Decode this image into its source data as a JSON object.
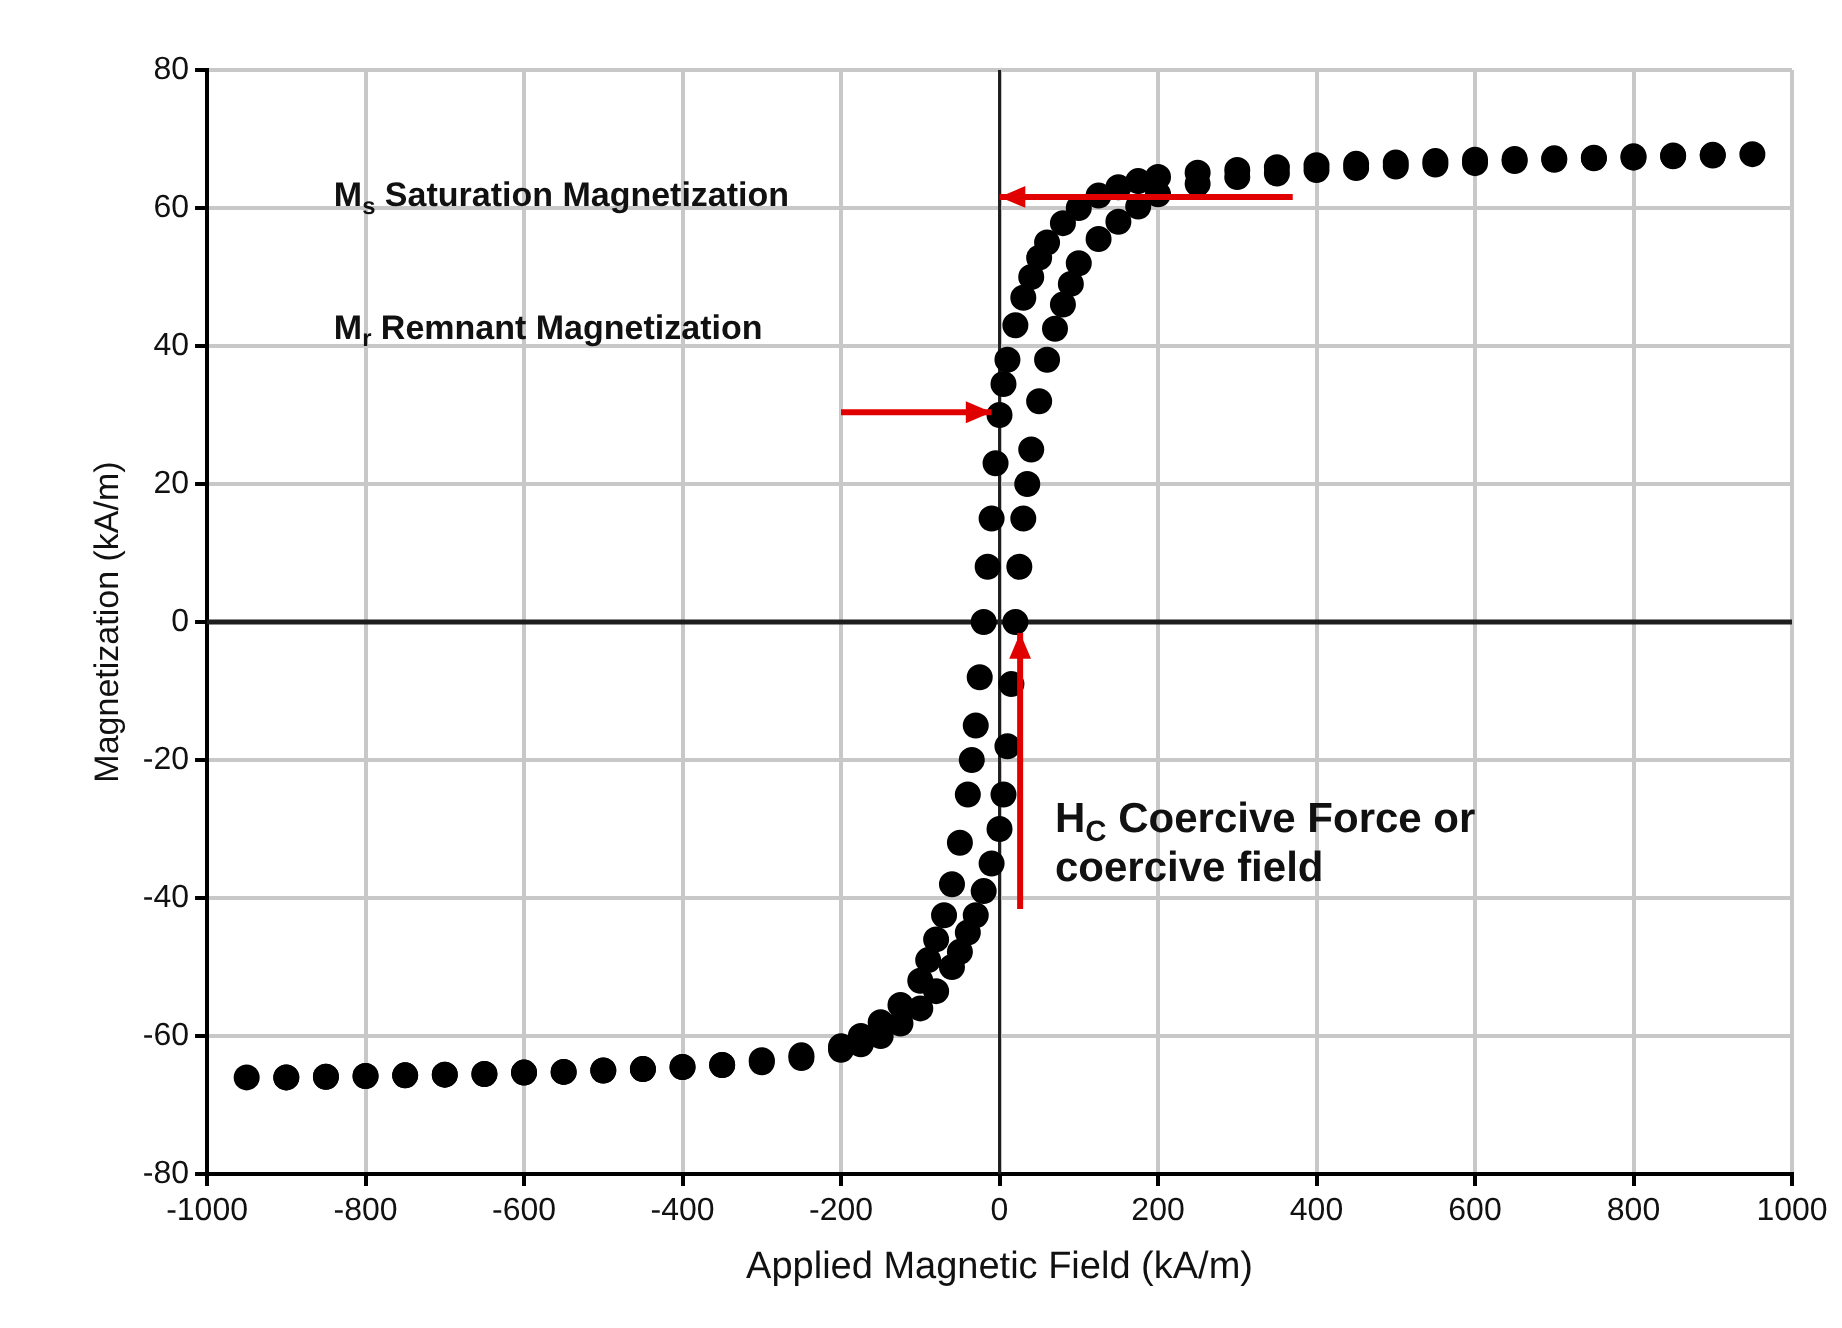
{
  "chart_data": {
    "type": "scatter",
    "xlabel": "Applied Magnetic Field (kA/m)",
    "ylabel": "Magnetization (kA/m)",
    "xlim": [
      -1000,
      1000
    ],
    "xticks": [
      -1000,
      -800,
      -600,
      -400,
      -200,
      0,
      200,
      400,
      600,
      800,
      1000
    ],
    "ylim": [
      -80,
      80
    ],
    "yticks": [
      -80,
      -60,
      -40,
      -20,
      0,
      20,
      40,
      60,
      80
    ],
    "grid": true,
    "legend": false,
    "marker": "circle",
    "series": [
      {
        "color": "#000000",
        "x": [
          -950,
          -900,
          -850,
          -800,
          -750,
          -700,
          -650,
          -600,
          -550,
          -500,
          -450,
          -400,
          -350,
          -300,
          -250,
          -200,
          -175,
          -150,
          -125,
          -100,
          -80,
          -60,
          -50,
          -40,
          -30,
          -20,
          -10,
          0,
          5,
          10,
          15,
          20,
          25,
          30,
          35,
          40,
          50,
          60,
          70,
          80,
          90,
          100,
          125,
          150,
          175,
          200,
          250,
          300,
          350,
          400,
          450,
          500,
          550,
          600,
          650,
          700,
          750,
          800,
          850,
          900,
          950,
          900,
          850,
          800,
          750,
          700,
          650,
          600,
          550,
          500,
          450,
          400,
          350,
          300,
          250,
          200,
          175,
          150,
          125,
          100,
          80,
          60,
          50,
          40,
          30,
          20,
          10,
          5,
          0,
          -5,
          -10,
          -15,
          -20,
          -25,
          -30,
          -35,
          -40,
          -50,
          -60,
          -70,
          -80,
          -90,
          -100,
          -125,
          -150,
          -175,
          -200,
          -250,
          -300,
          -350,
          -400,
          -450,
          -500,
          -550,
          -600,
          -650,
          -700,
          -750,
          -800,
          -850,
          -900
        ],
        "values": [
          -66,
          -66,
          -65.9,
          -65.8,
          -65.7,
          -65.6,
          -65.5,
          -65.3,
          -65.2,
          -65,
          -64.8,
          -64.5,
          -64.2,
          -63.8,
          -63.2,
          -62,
          -61.2,
          -60,
          -58.2,
          -56,
          -53.5,
          -50,
          -47.8,
          -45,
          -42.5,
          -39,
          -35,
          -30,
          -25,
          -18,
          -9,
          0,
          8,
          15,
          20,
          25,
          32,
          38,
          42.5,
          46,
          49,
          52,
          55.5,
          58,
          60.2,
          62,
          63.5,
          64.5,
          65,
          65.5,
          65.8,
          66,
          66.3,
          66.5,
          66.8,
          67,
          67.2,
          67.3,
          67.5,
          67.6,
          67.8,
          67.7,
          67.6,
          67.5,
          67.3,
          67.2,
          67.1,
          67,
          66.8,
          66.6,
          66.4,
          66.2,
          65.9,
          65.5,
          65.1,
          64.5,
          63.9,
          63,
          61.8,
          60,
          57.8,
          55,
          52.8,
          50,
          47,
          43,
          38,
          34.5,
          30,
          23,
          15,
          8,
          0,
          -8,
          -15,
          -20,
          -25,
          -32,
          -38,
          -42.5,
          -46,
          -49,
          -52,
          -55.5,
          -58,
          -60,
          -61.5,
          -62.8,
          -63.5,
          -64.2,
          -64.5,
          -64.8,
          -65,
          -65.2,
          -65.3,
          -65.5,
          -65.6,
          -65.7,
          -65.8,
          -65.9,
          -66
        ]
      }
    ],
    "ref_lines": [
      {
        "axis": "x",
        "value": 0,
        "color": "#1e1e1e"
      },
      {
        "axis": "y",
        "value": 0,
        "color": "#1e1e1e"
      }
    ],
    "annotations": [
      "M$_{s}$ Saturation Magnetization",
      "M$_{r}$ Remnant Magnetization",
      "H$_{C}$ Coercive Force or coercive field"
    ]
  }
}
